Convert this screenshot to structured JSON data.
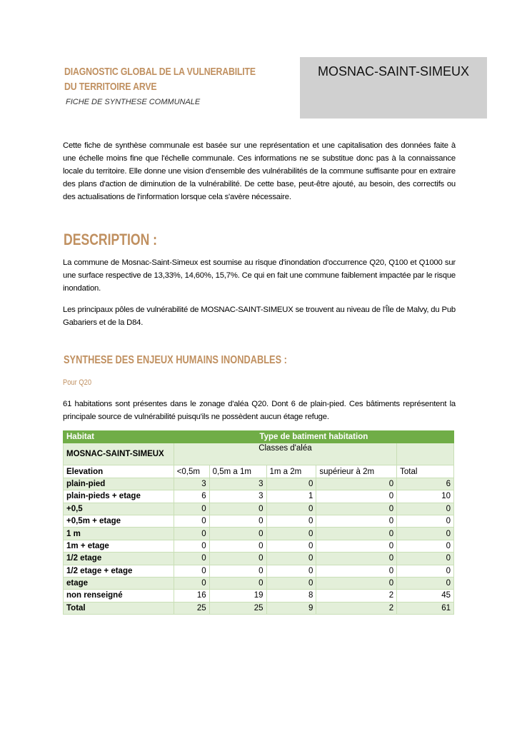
{
  "header": {
    "title_line1": "DIAGNOSTIC GLOBAL DE LA VULNERABILITE",
    "title_line2": "DU TERRITOIRE ARVE",
    "subtitle": "FICHE DE SYNTHESE COMMUNALE",
    "commune": "MOSNAC-SAINT-SIMEUX"
  },
  "intro": "Cette fiche de synthèse communale est basée sur une représentation et une capitalisation des données faite à une échelle moins fine que l'échelle communale. Ces informations ne se substitue donc pas à la connaissance locale du territoire. Elle donne une vision d'ensemble des vulnérabilités de la commune suffisante pour en extraire des plans d'action de diminution de la vulnérabilité. De cette base, peut-être ajouté, au besoin, des correctifs ou des actualisations de l'information lorsque cela s'avère nécessaire.",
  "description": {
    "heading": "DESCRIPTION :",
    "p1": "La commune de Mosnac-Saint-Simeux est soumise au risque d'inondation d'occurrence Q20, Q100 et Q1000 sur une surface respective de 13,33%, 14,60%, 15,7%. Ce qui en fait une commune faiblement impactée par le risque inondation.",
    "p2": "Les principaux pôles de vulnérabilité de MOSNAC-SAINT-SIMEUX se trouvent au niveau de l'Île de Malvy, du Pub Gabariers et de la D84."
  },
  "synthese": {
    "heading": "SYNTHESE DES ENJEUX HUMAINS INONDABLES :",
    "sub": "Pour Q20",
    "p1": "61 habitations sont présentes dans le zonage d'aléa Q20. Dont 6 de plain-pied. Ces bâtiments représentent la principale source de vulnérabilité puisqu'ils ne possèdent aucun étage refuge."
  },
  "table": {
    "h_habitat": "Habitat",
    "h_type": "Type de batiment habitation",
    "commune": "MOSNAC-SAINT-SIMEUX",
    "classes": "Classes d'aléa",
    "elevation": "Elevation",
    "columns": [
      "<0,5m",
      "0,5m a 1m",
      "1m a 2m",
      "supérieur à 2m",
      "Total"
    ],
    "rows": [
      {
        "label": "plain-pied",
        "values": [
          "3",
          "3",
          "0",
          "0",
          "6"
        ]
      },
      {
        "label": "plain-pieds + etage",
        "values": [
          "6",
          "3",
          "1",
          "0",
          "10"
        ]
      },
      {
        "label": "+0,5",
        "values": [
          "0",
          "0",
          "0",
          "0",
          "0"
        ]
      },
      {
        "label": "+0,5m + etage",
        "values": [
          "0",
          "0",
          "0",
          "0",
          "0"
        ]
      },
      {
        "label": "1 m",
        "values": [
          "0",
          "0",
          "0",
          "0",
          "0"
        ]
      },
      {
        "label": "1m + etage",
        "values": [
          "0",
          "0",
          "0",
          "0",
          "0"
        ]
      },
      {
        "label": "1/2 etage",
        "values": [
          "0",
          "0",
          "0",
          "0",
          "0"
        ]
      },
      {
        "label": "1/2 etage + etage",
        "values": [
          "0",
          "0",
          "0",
          "0",
          "0"
        ]
      },
      {
        "label": "etage",
        "values": [
          "0",
          "0",
          "0",
          "0",
          "0"
        ]
      },
      {
        "label": "non renseigné",
        "values": [
          "16",
          "19",
          "8",
          "2",
          "45"
        ]
      },
      {
        "label": "Total",
        "values": [
          "25",
          "25",
          "9",
          "2",
          "61"
        ]
      }
    ]
  },
  "colors": {
    "accent": "#c09060",
    "table_header": "#70ad47",
    "table_shade": "#e3efd9",
    "commune_box": "#d0d0d0"
  }
}
